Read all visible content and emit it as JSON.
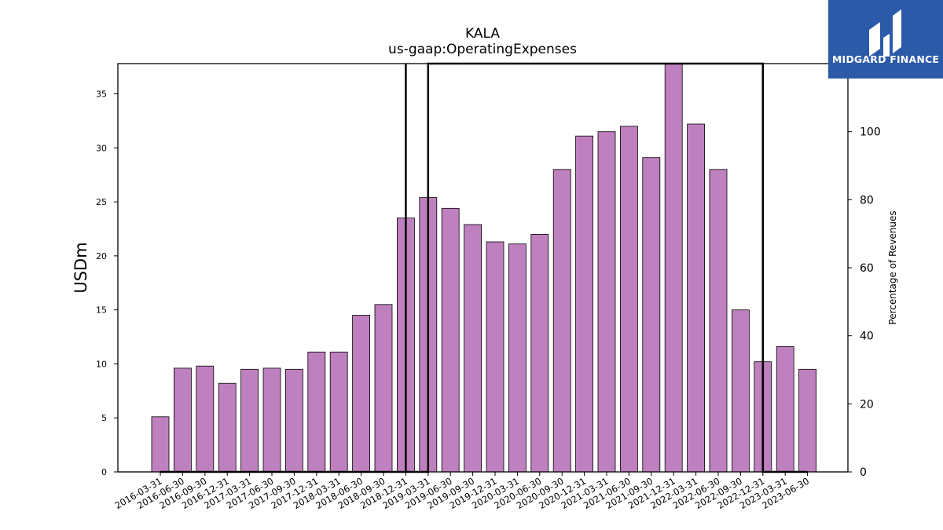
{
  "chart_data": {
    "type": "bar",
    "title": "KALA",
    "subtitle": "us-gaap:OperatingExpenses",
    "ylabel": "USDm",
    "y2label": "Percentage of Revenues",
    "ylim": [
      0,
      37.8
    ],
    "y2lim": [
      0,
      120
    ],
    "yticks": [
      0,
      5,
      10,
      15,
      20,
      25,
      30,
      35
    ],
    "y2ticks": [
      0,
      20,
      40,
      60,
      80,
      100
    ],
    "bar_color": "#bf80bf",
    "categories": [
      "2016-03-31",
      "2016-06-30",
      "2016-09-30",
      "2016-12-31",
      "2017-03-31",
      "2017-06-30",
      "2017-09-30",
      "2017-12-31",
      "2018-03-31",
      "2018-06-30",
      "2018-09-30",
      "2018-12-31",
      "2019-03-31",
      "2019-06-30",
      "2019-09-30",
      "2019-12-31",
      "2020-03-31",
      "2020-06-30",
      "2020-09-30",
      "2020-12-31",
      "2021-03-31",
      "2021-06-30",
      "2021-09-30",
      "2021-12-31",
      "2022-03-31",
      "2022-06-30",
      "2022-09-30",
      "2022-12-31",
      "2023-03-31",
      "2023-06-30"
    ],
    "values": [
      5.1,
      9.6,
      9.8,
      8.2,
      9.5,
      9.6,
      9.5,
      11.1,
      11.1,
      14.5,
      15.5,
      23.5,
      25.4,
      24.4,
      22.9,
      21.3,
      21.1,
      22.0,
      28.0,
      31.1,
      31.5,
      32.0,
      29.1,
      37.8,
      32.2,
      28.0,
      15.0,
      10.2,
      11.6,
      9.5
    ],
    "percentage_line": {
      "values": [
        0,
        0,
        0,
        0,
        0,
        0,
        0,
        0,
        0,
        0,
        0,
        0,
        120,
        120,
        120,
        120,
        120,
        120,
        120,
        120,
        120,
        120,
        120,
        120,
        120,
        120,
        120,
        0,
        0,
        0
      ],
      "vertical_lines_at_categories": [
        "2018-12-31",
        "2022-12-31"
      ]
    }
  },
  "logo": {
    "text": "MIDGARD FINANCE",
    "background": "#2b5aa8"
  }
}
